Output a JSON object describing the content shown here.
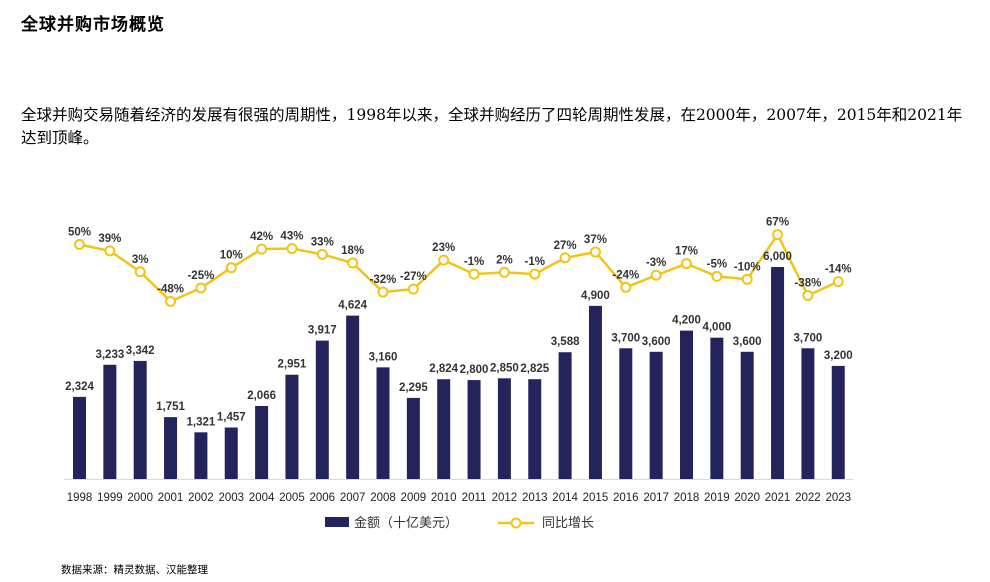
{
  "page": {
    "title": "全球并购市场概览",
    "description": "全球并购交易随着经济的发展有很强的周期性，1998年以来，全球并购经历了四轮周期性发展，在2000年，2007年，2015年和2021年达到顶峰。",
    "source": "数据来源：精灵数据、汉能整理"
  },
  "colors": {
    "bar": "#24245C",
    "line": "#F2C418",
    "axis": "#D9D9D9"
  },
  "chart_data": {
    "type": "bar",
    "categories": [
      "1998",
      "1999",
      "2000",
      "2001",
      "2002",
      "2003",
      "2004",
      "2005",
      "2006",
      "2007",
      "2008",
      "2009",
      "2010",
      "2011",
      "2012",
      "2013",
      "2014",
      "2015",
      "2016",
      "2017",
      "2018",
      "2019",
      "2020",
      "2021",
      "2022",
      "2023"
    ],
    "series": [
      {
        "name": "金额（十亿美元）",
        "type": "bar",
        "values": [
          2324,
          3233,
          3342,
          1751,
          1321,
          1457,
          2066,
          2951,
          3917,
          4624,
          3160,
          2295,
          2824,
          2800,
          2850,
          2825,
          3588,
          4900,
          3700,
          3600,
          4200,
          4000,
          3600,
          6000,
          3700,
          3200
        ],
        "labels": [
          "2,324",
          "3,233",
          "3,342",
          "1,751",
          "1,321",
          "1,457",
          "2,066",
          "2,951",
          "3,917",
          "4,624",
          "3,160",
          "2,295",
          "2,824",
          "2,800",
          "2,850",
          "2,825",
          "3,588",
          "4,900",
          "3,700",
          "3,600",
          "4,200",
          "4,000",
          "3,600",
          "6,000",
          "3,700",
          "3,200"
        ]
      },
      {
        "name": "同比增长",
        "type": "line",
        "values": [
          50,
          39,
          3,
          -48,
          -25,
          10,
          42,
          43,
          33,
          18,
          -32,
          -27,
          23,
          -1,
          2,
          -1,
          27,
          37,
          -24,
          -3,
          17,
          -5,
          -10,
          67,
          -38,
          -14
        ],
        "labels": [
          "50%",
          "39%",
          "3%",
          "-48%",
          "-25%",
          "10%",
          "42%",
          "43%",
          "33%",
          "18%",
          "-32%",
          "-27%",
          "23%",
          "-1%",
          "2%",
          "-1%",
          "27%",
          "37%",
          "-24%",
          "-3%",
          "17%",
          "-5%",
          "-10%",
          "67%",
          "-38%",
          "-14%"
        ]
      }
    ],
    "legend_position": "bottom",
    "grid": false
  }
}
